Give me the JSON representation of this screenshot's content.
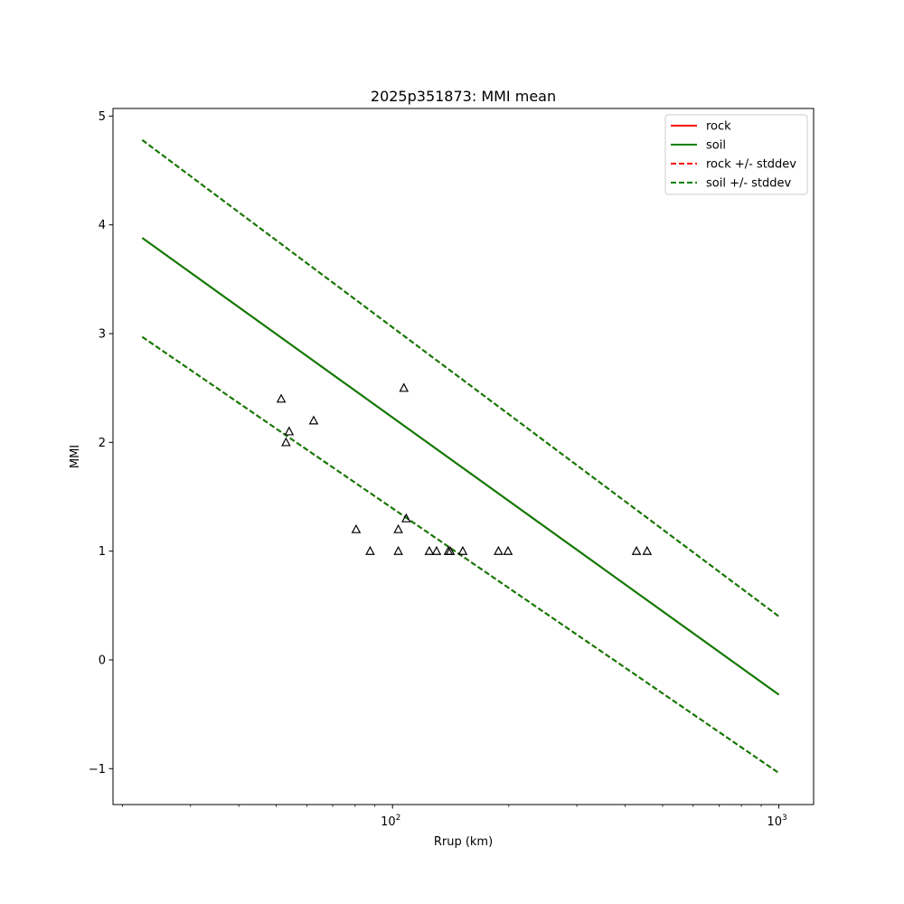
{
  "chart_data": {
    "type": "scatter",
    "title": "2025p351873: MMI mean",
    "xlabel": "Rrup (km)",
    "ylabel": "MMI",
    "xscale": "log",
    "xlim": [
      18.9,
      1230
    ],
    "ylim": [
      -1.33,
      5.07
    ],
    "x_ticks": [
      {
        "value": 100,
        "base": "10",
        "exp": "2"
      },
      {
        "value": 1000,
        "base": "10",
        "exp": "3"
      }
    ],
    "y_ticks": [
      {
        "value": -1,
        "label": "−1"
      },
      {
        "value": 0,
        "label": "0"
      },
      {
        "value": 1,
        "label": "1"
      },
      {
        "value": 2,
        "label": "2"
      },
      {
        "value": 3,
        "label": "3"
      },
      {
        "value": 4,
        "label": "4"
      },
      {
        "value": 5,
        "label": "5"
      }
    ],
    "grid": false,
    "legend_position": "upper right",
    "series": [
      {
        "name": "rock",
        "kind": "line",
        "style": "solid",
        "color": "#ff0000",
        "x": [
          22.5,
          1000
        ],
        "y": [
          3.88,
          -0.32
        ]
      },
      {
        "name": "soil",
        "kind": "line",
        "style": "solid",
        "color": "#008000",
        "x": [
          22.5,
          1000
        ],
        "y": [
          3.88,
          -0.32
        ]
      },
      {
        "name": "rock +/- stddev",
        "kind": "band",
        "style": "dashed",
        "color": "#ff0000",
        "x": [
          22.5,
          1000
        ],
        "upper": [
          4.78,
          0.4
        ],
        "lower": [
          2.97,
          -1.04
        ]
      },
      {
        "name": "soil +/- stddev",
        "kind": "band",
        "style": "dashed",
        "color": "#008000",
        "x": [
          22.5,
          1000
        ],
        "upper": [
          4.78,
          0.4
        ],
        "lower": [
          2.97,
          -1.04
        ]
      }
    ],
    "observations": {
      "marker": "triangle",
      "color": "#000000",
      "points": [
        {
          "x": 51.5,
          "y": 2.4
        },
        {
          "x": 53.0,
          "y": 2.0
        },
        {
          "x": 54.0,
          "y": 2.1
        },
        {
          "x": 62.5,
          "y": 2.2
        },
        {
          "x": 80.5,
          "y": 1.2
        },
        {
          "x": 87.5,
          "y": 1.0
        },
        {
          "x": 103.5,
          "y": 1.0
        },
        {
          "x": 103.5,
          "y": 1.2
        },
        {
          "x": 107.0,
          "y": 2.5
        },
        {
          "x": 108.5,
          "y": 1.3
        },
        {
          "x": 124.5,
          "y": 1.0
        },
        {
          "x": 130.0,
          "y": 1.0
        },
        {
          "x": 139.5,
          "y": 1.0
        },
        {
          "x": 141.0,
          "y": 1.0
        },
        {
          "x": 152.0,
          "y": 1.0
        },
        {
          "x": 188.0,
          "y": 1.0
        },
        {
          "x": 199.0,
          "y": 1.0
        },
        {
          "x": 428.0,
          "y": 1.0
        },
        {
          "x": 456.0,
          "y": 1.0
        }
      ]
    }
  }
}
